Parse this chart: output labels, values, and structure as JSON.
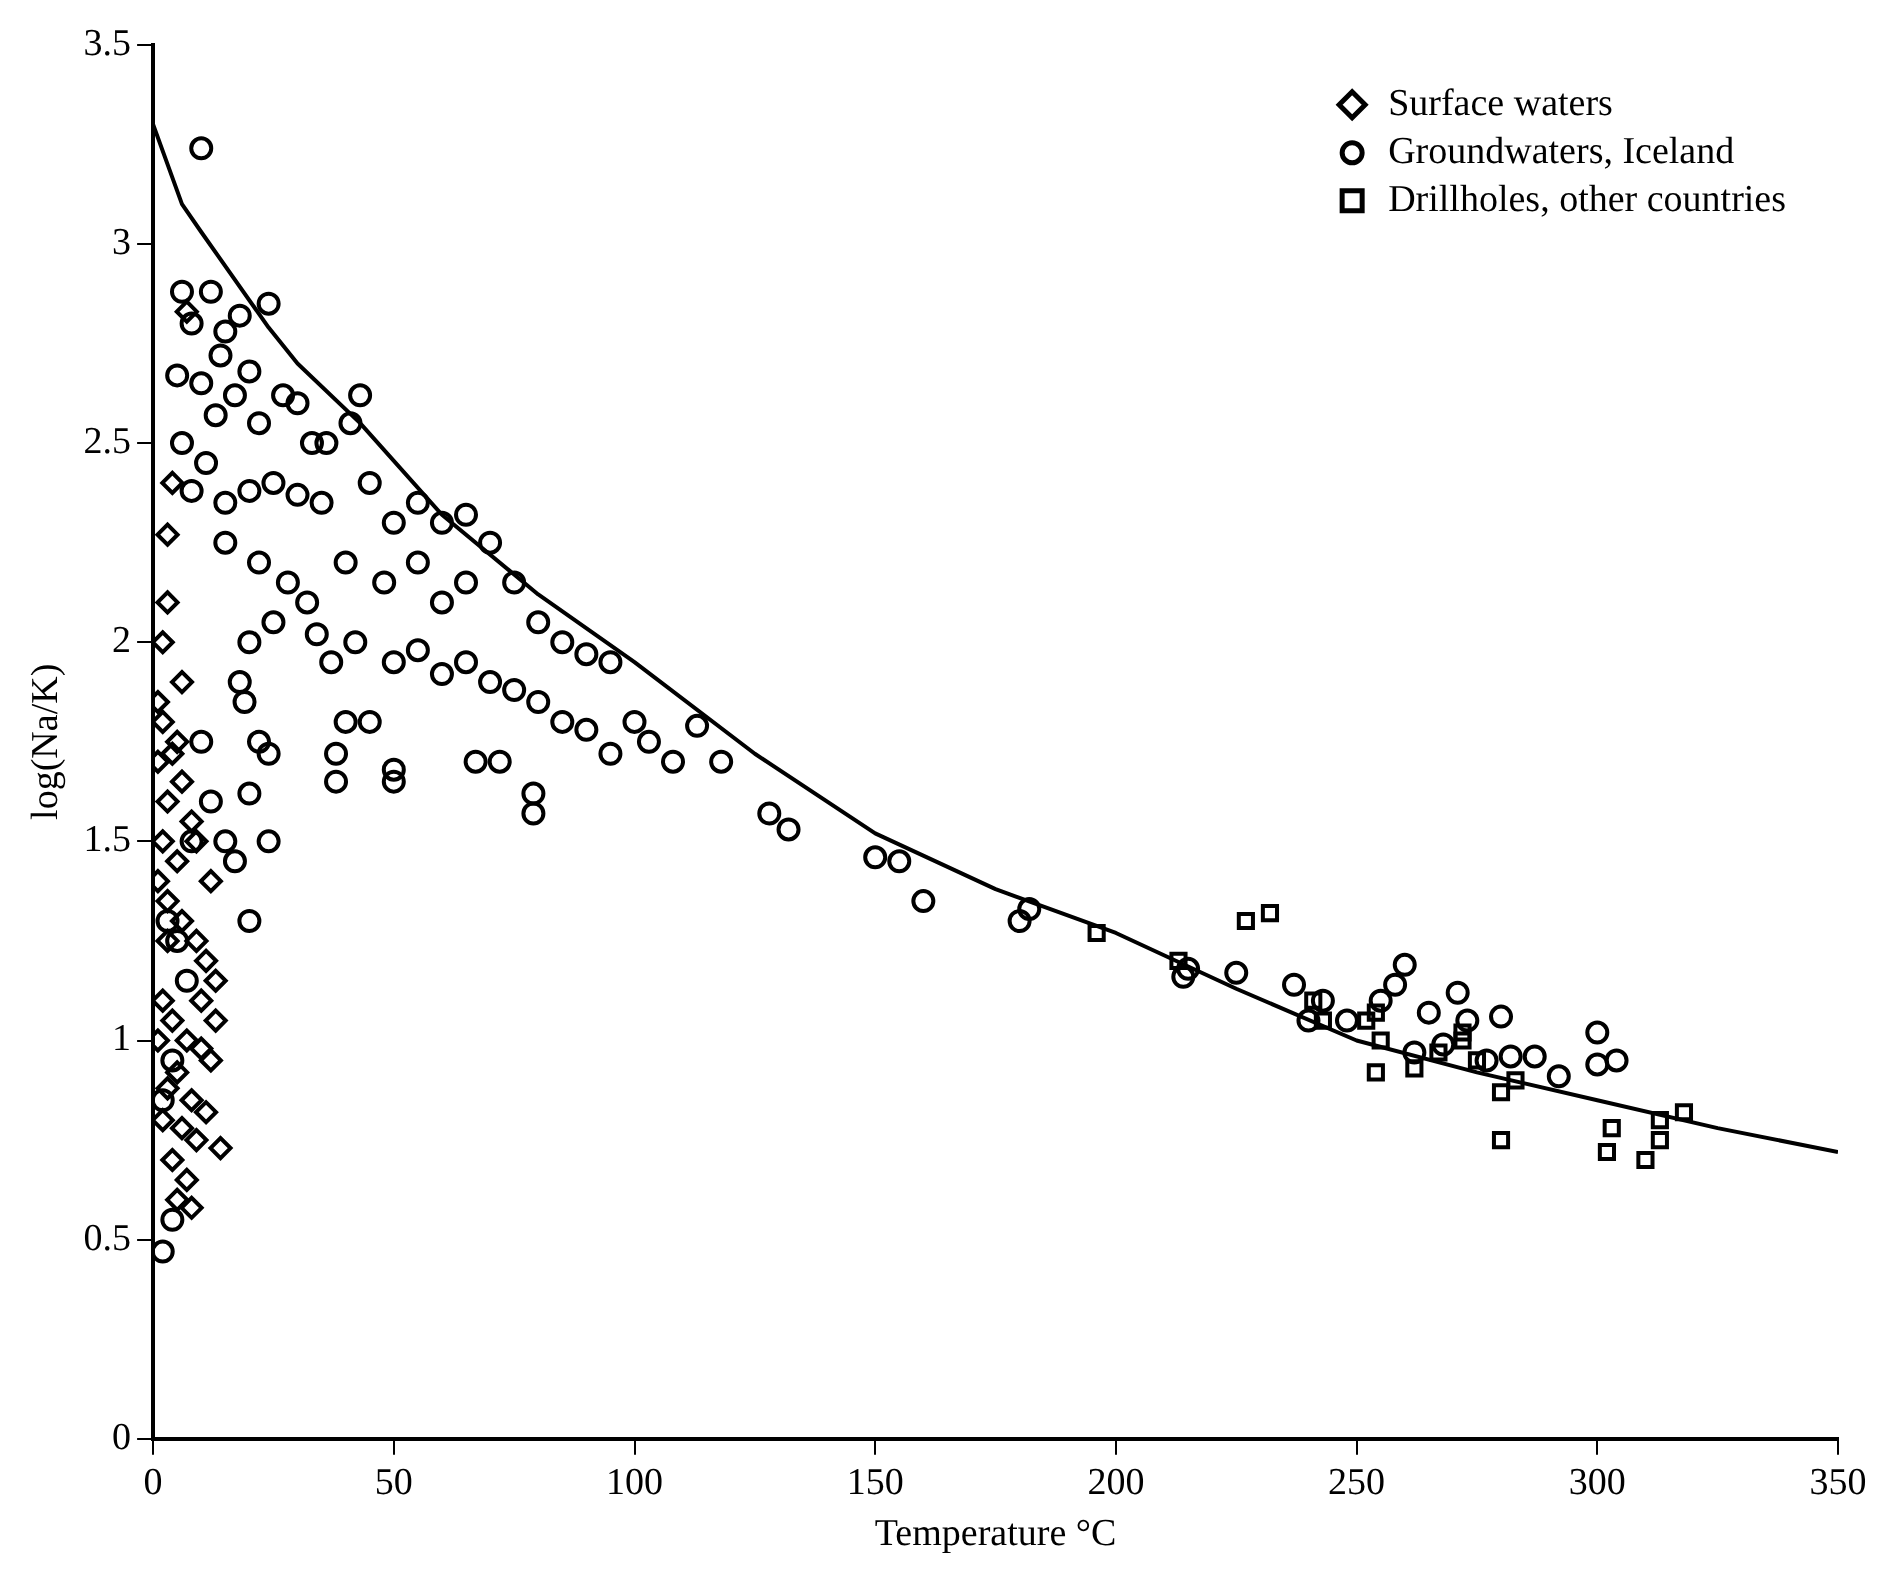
{
  "chart_data": {
    "type": "scatter",
    "xlabel": "Temperature °C",
    "ylabel": "log(Na/K)",
    "xlim": [
      0,
      350
    ],
    "ylim": [
      0,
      3.5
    ],
    "xticks": [
      0,
      50,
      100,
      150,
      200,
      250,
      300,
      350
    ],
    "yticks": [
      0,
      0.5,
      1,
      1.5,
      2,
      2.5,
      3,
      3.5
    ],
    "grid": false,
    "legend": "top right",
    "series": [
      {
        "name": "Surface waters",
        "color": "#000000",
        "marker": "diamond",
        "x": [
          7,
          4,
          3,
          3,
          2,
          1,
          2,
          4,
          1,
          6,
          3,
          8,
          2,
          5,
          1,
          3,
          6,
          9,
          11,
          13,
          2,
          4,
          1,
          7,
          10,
          12,
          5,
          3,
          8,
          11,
          2,
          6,
          9,
          14,
          4,
          7,
          5,
          8,
          10,
          12,
          6,
          5,
          9,
          13,
          3
        ],
        "values": [
          2.83,
          2.4,
          2.27,
          2.1,
          2.0,
          1.85,
          1.8,
          1.72,
          1.7,
          1.65,
          1.6,
          1.55,
          1.5,
          1.45,
          1.4,
          1.35,
          1.3,
          1.25,
          1.2,
          1.15,
          1.1,
          1.05,
          1.0,
          1.0,
          0.98,
          0.95,
          0.92,
          0.88,
          0.85,
          0.82,
          0.8,
          0.78,
          0.75,
          0.73,
          0.7,
          0.65,
          0.6,
          0.58,
          1.1,
          1.4,
          1.9,
          1.75,
          1.5,
          1.05,
          1.25
        ]
      },
      {
        "name": "Groundwaters, Iceland",
        "color": "#000000",
        "marker": "circle",
        "x": [
          10,
          6,
          12,
          8,
          15,
          18,
          24,
          14,
          5,
          10,
          17,
          20,
          27,
          13,
          22,
          6,
          11,
          30,
          33,
          36,
          41,
          43,
          8,
          15,
          20,
          25,
          30,
          35,
          45,
          50,
          55,
          60,
          65,
          70,
          15,
          22,
          28,
          32,
          40,
          48,
          55,
          60,
          65,
          75,
          80,
          85,
          90,
          95,
          100,
          103,
          113,
          118,
          108,
          20,
          25,
          34,
          37,
          42,
          50,
          55,
          60,
          65,
          70,
          75,
          80,
          85,
          90,
          95,
          38,
          38,
          40,
          45,
          50,
          50,
          67,
          72,
          79,
          79,
          19,
          22,
          20,
          24,
          24,
          17,
          15,
          20,
          10,
          12,
          8,
          18,
          128,
          132,
          150,
          155,
          160,
          180,
          182,
          214,
          215,
          225,
          237,
          240,
          243,
          248,
          255,
          258,
          260,
          262,
          265,
          268,
          271,
          273,
          277,
          280,
          282,
          287,
          292,
          300,
          300,
          304,
          2,
          3,
          5,
          7,
          4,
          2,
          4
        ],
        "values": [
          3.24,
          2.88,
          2.88,
          2.8,
          2.78,
          2.82,
          2.85,
          2.72,
          2.67,
          2.65,
          2.62,
          2.68,
          2.62,
          2.57,
          2.55,
          2.5,
          2.45,
          2.6,
          2.5,
          2.5,
          2.55,
          2.62,
          2.38,
          2.35,
          2.38,
          2.4,
          2.37,
          2.35,
          2.4,
          2.3,
          2.35,
          2.3,
          2.32,
          2.25,
          2.25,
          2.2,
          2.15,
          2.1,
          2.2,
          2.15,
          2.2,
          2.1,
          2.15,
          2.15,
          2.05,
          2.0,
          1.97,
          1.95,
          1.8,
          1.75,
          1.79,
          1.7,
          1.7,
          2.0,
          2.05,
          2.02,
          1.95,
          2.0,
          1.95,
          1.98,
          1.92,
          1.95,
          1.9,
          1.88,
          1.85,
          1.8,
          1.78,
          1.72,
          1.72,
          1.65,
          1.8,
          1.8,
          1.68,
          1.65,
          1.7,
          1.7,
          1.62,
          1.57,
          1.85,
          1.75,
          1.62,
          1.72,
          1.5,
          1.45,
          1.5,
          1.3,
          1.75,
          1.6,
          1.5,
          1.9,
          1.57,
          1.53,
          1.46,
          1.45,
          1.35,
          1.3,
          1.33,
          1.16,
          1.18,
          1.17,
          1.14,
          1.05,
          1.1,
          1.05,
          1.1,
          1.14,
          1.19,
          0.97,
          1.07,
          0.99,
          1.12,
          1.05,
          0.95,
          1.06,
          0.96,
          0.96,
          0.91,
          1.02,
          0.94,
          0.95,
          0.47,
          1.3,
          1.25,
          1.15,
          0.95,
          0.85,
          0.55
        ]
      },
      {
        "name": "Drillholes, other countries",
        "color": "#000000",
        "marker": "square",
        "x": [
          196,
          213,
          227,
          232,
          241,
          243,
          252,
          254,
          254,
          255,
          262,
          267,
          272,
          272,
          275,
          280,
          280,
          283,
          302,
          303,
          310,
          313,
          313,
          318
        ],
        "values": [
          1.27,
          1.2,
          1.3,
          1.32,
          1.1,
          1.05,
          1.05,
          1.07,
          0.92,
          1.0,
          0.93,
          0.97,
          1.0,
          1.02,
          0.95,
          0.87,
          0.75,
          0.9,
          0.72,
          0.78,
          0.7,
          0.75,
          0.8,
          0.82
        ]
      },
      {
        "type": "line",
        "color": "#000000",
        "marker": "none",
        "x": [
          0,
          6,
          10,
          24,
          30,
          43,
          60,
          80,
          100,
          125,
          150,
          175,
          200,
          225,
          250,
          275,
          300,
          325,
          350
        ],
        "values": [
          3.3,
          3.1,
          3.03,
          2.79,
          2.7,
          2.55,
          2.32,
          2.12,
          1.95,
          1.72,
          1.52,
          1.38,
          1.27,
          1.13,
          1.0,
          0.92,
          0.85,
          0.78,
          0.72
        ]
      }
    ]
  }
}
